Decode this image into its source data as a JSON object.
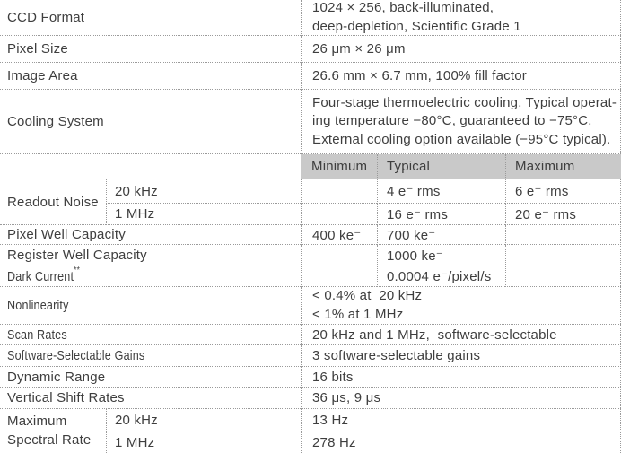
{
  "colors": {
    "header_bg": "#c9c9c9",
    "text": "#3e3e3e",
    "grid_line": "#9a9a9a",
    "background": "#ffffff"
  },
  "table": {
    "stats_header": {
      "minimum": "Minimum",
      "typical": "Typical",
      "maximum": "Maximum"
    },
    "rows": {
      "ccd_format": {
        "label": "CCD Format",
        "value_lines": [
          "1024 × 256, back-illuminated,",
          "deep-depletion, Scientific Grade 1"
        ]
      },
      "pixel_size": {
        "label": "Pixel Size",
        "value": "26 μm × 26 μm"
      },
      "image_area": {
        "label": "Image Area",
        "value": "26.6 mm × 6.7 mm, 100% fill factor"
      },
      "cooling_system": {
        "label": "Cooling System",
        "value_lines": [
          "Four-stage thermoelectric cooling. Typical operat-",
          "ing temperature −80°C, guaranteed to −75°C.",
          "External cooling option available (−95°C typical)."
        ]
      },
      "readout_noise": {
        "label": "Readout Noise",
        "sub_rows": [
          {
            "condition": "20 kHz",
            "minimum": "",
            "typical": "4 e⁻ rms",
            "maximum": "6 e⁻ rms"
          },
          {
            "condition": "1 MHz",
            "minimum": "",
            "typical": "16 e⁻ rms",
            "maximum": "20 e⁻ rms"
          }
        ]
      },
      "pixel_well_capacity": {
        "label": "Pixel Well Capacity",
        "minimum": "400 ke⁻",
        "typical": "700 ke⁻",
        "maximum": ""
      },
      "register_well_capacity": {
        "label": "Register Well Capacity",
        "minimum": "",
        "typical": "1000 ke⁻",
        "maximum": ""
      },
      "dark_current": {
        "label": "Dark Current",
        "footnote_marker": "**",
        "minimum": "",
        "typical": "0.0004 e⁻/pixel/s",
        "maximum": ""
      },
      "nonlinearity": {
        "label": "Nonlinearity",
        "value_lines": [
          "< 0.4% at  20 kHz",
          "< 1% at 1 MHz"
        ]
      },
      "scan_rates": {
        "label": "Scan Rates",
        "value": "20 kHz and 1 MHz,  software-selectable"
      },
      "software_selectable_gains": {
        "label": "Software-Selectable Gains",
        "value": "3 software-selectable gains"
      },
      "dynamic_range": {
        "label": "Dynamic Range",
        "value": "16 bits"
      },
      "vertical_shift_rates": {
        "label": "Vertical Shift Rates",
        "value": "36 μs, 9 μs"
      },
      "maximum_spectral_rate": {
        "label_lines": [
          "Maximum",
          "Spectral Rate"
        ],
        "sub_rows": [
          {
            "condition": "20 kHz",
            "value": "13 Hz"
          },
          {
            "condition": "1 MHz",
            "value": "278 Hz"
          }
        ]
      }
    }
  }
}
